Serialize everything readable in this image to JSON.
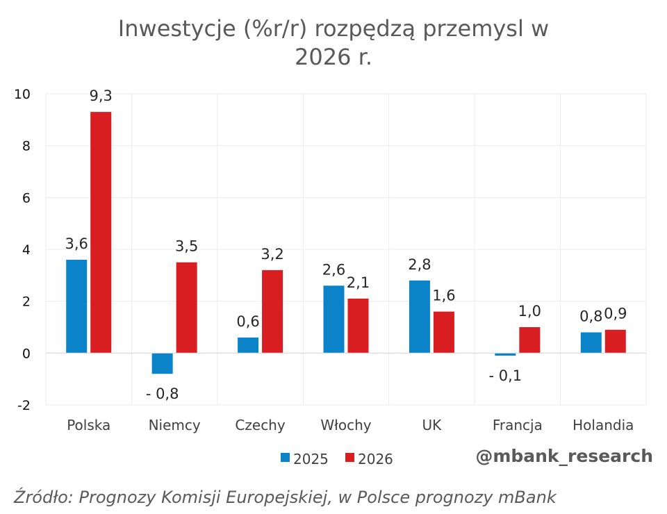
{
  "chart_data": {
    "type": "bar",
    "title_lines": [
      "Inwestycje (%r/r) rozpędzą przemysl w",
      "2026 r."
    ],
    "categories": [
      "Polska",
      "Niemcy",
      "Czechy",
      "Włochy",
      "UK",
      "Francja",
      "Holandia"
    ],
    "series": [
      {
        "name": "2025",
        "color": "#0A83C9",
        "values": [
          3.6,
          -0.8,
          0.6,
          2.6,
          2.8,
          -0.1,
          0.8
        ],
        "labels": [
          "3,6",
          "- 0,8",
          "0,6",
          "2,6",
          "2,8",
          "- 0,1",
          "0,8"
        ]
      },
      {
        "name": "2026",
        "color": "#D91E22",
        "values": [
          9.3,
          3.5,
          3.2,
          2.1,
          1.6,
          1.0,
          0.9
        ],
        "labels": [
          "9,3",
          "3,5",
          "3,2",
          "2,1",
          "1,6",
          "1,0",
          "0,9"
        ]
      }
    ],
    "yticks": [
      10,
      8,
      6,
      4,
      2,
      0,
      -2
    ],
    "ylim": [
      -2,
      10
    ],
    "xlabel": "",
    "ylabel": "",
    "grid": true,
    "legend": "bottom-center"
  },
  "watermark": "@mbank_research",
  "source": "Źródło: Prognozy Komisji Europejskiej, w Polsce prognozy mBank"
}
